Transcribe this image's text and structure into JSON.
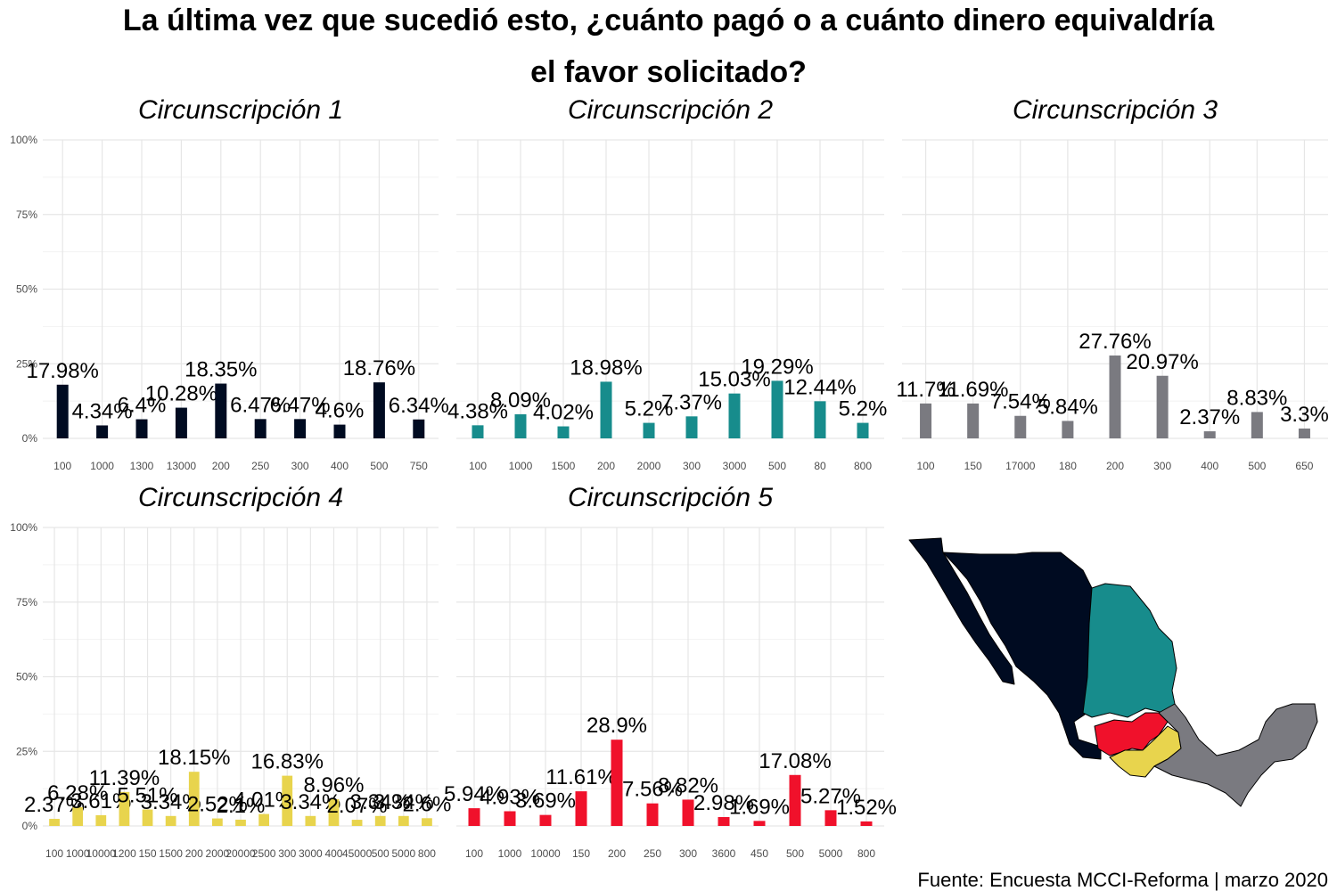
{
  "title_line1": "La última vez que sucedió esto, ¿cuánto pagó o a cuánto dinero equivaldría",
  "title_line2": "el favor solicitado?",
  "caption": "Fuente: Encuesta MCCI-Reforma | marzo 2020",
  "chart_data": {
    "type": "bar",
    "y_tick_labels": [
      "0%",
      "25%",
      "50%",
      "75%",
      "100%"
    ],
    "ylim": [
      0,
      100
    ],
    "grid": true,
    "panels": [
      {
        "title": "Circunscripción 1",
        "color": "#000b21",
        "categories": [
          "100",
          "1000",
          "1300",
          "13000",
          "200",
          "250",
          "300",
          "400",
          "500",
          "750"
        ],
        "values": [
          17.98,
          4.34,
          6.4,
          10.28,
          18.35,
          6.47,
          6.47,
          4.6,
          18.76,
          6.34
        ],
        "labels": [
          "17.98%",
          "4.34%",
          "6.4%",
          "10.28%",
          "18.35%",
          "6.47%",
          "6.47%",
          "4.6%",
          "18.76%",
          "6.34%"
        ]
      },
      {
        "title": "Circunscripción 2",
        "color": "#178c8c",
        "categories": [
          "100",
          "1000",
          "1500",
          "200",
          "2000",
          "300",
          "3000",
          "500",
          "80",
          "800"
        ],
        "values": [
          4.38,
          8.09,
          4.02,
          18.98,
          5.2,
          7.37,
          15.03,
          19.29,
          12.44,
          5.2
        ],
        "labels": [
          "4.38%",
          "8.09%",
          "4.02%",
          "18.98%",
          "5.2%",
          "7.37%",
          "15.03%",
          "19.29%",
          "12.44%",
          "5.2%"
        ]
      },
      {
        "title": "Circunscripción 3",
        "color": "#7a7a80",
        "categories": [
          "100",
          "150",
          "17000",
          "180",
          "200",
          "300",
          "400",
          "500",
          "650"
        ],
        "values": [
          11.7,
          11.69,
          7.54,
          5.84,
          27.76,
          20.97,
          2.37,
          8.83,
          3.3
        ],
        "labels": [
          "11.7%",
          "11.69%",
          "7.54%",
          "5.84%",
          "27.76%",
          "20.97%",
          "2.37%",
          "8.83%",
          "3.3%"
        ]
      },
      {
        "title": "Circunscripción 4",
        "color": "#e8d44d",
        "categories": [
          "100",
          "1000",
          "10000",
          "1200",
          "150",
          "1500",
          "200",
          "2000",
          "20000",
          "2500",
          "300",
          "3000",
          "400",
          "45000",
          "500",
          "5000",
          "800"
        ],
        "values": [
          2.37,
          6.28,
          3.61,
          11.39,
          5.51,
          3.34,
          18.15,
          2.52,
          2.1,
          4.01,
          16.83,
          3.34,
          8.96,
          2.07,
          3.34,
          3.34,
          2.6
        ],
        "labels": [
          "2.37%",
          "6.28%",
          "3.61%",
          "11.39%",
          "5.51%",
          "3.34%",
          "18.15%",
          "2.52%",
          "2.1%",
          "4.01%",
          "16.83%",
          "3.34%",
          "8.96%",
          "2.07%",
          "3.34%",
          "3.34%",
          "2.6%"
        ]
      },
      {
        "title": "Circunscripción 5",
        "color": "#f0112b",
        "categories": [
          "100",
          "1000",
          "10000",
          "150",
          "200",
          "250",
          "300",
          "3600",
          "450",
          "500",
          "5000",
          "800"
        ],
        "values": [
          5.94,
          4.93,
          3.69,
          11.61,
          28.9,
          7.56,
          8.82,
          2.98,
          1.69,
          17.08,
          5.27,
          1.52
        ],
        "labels": [
          "5.94%",
          "4.93%",
          "3.69%",
          "11.61%",
          "28.9%",
          "7.56%",
          "8.82%",
          "2.98%",
          "1.69%",
          "17.08%",
          "5.27%",
          "1.52%"
        ]
      }
    ]
  },
  "map": {
    "regions": [
      {
        "name": "Circunscripción 1",
        "color": "#000b21"
      },
      {
        "name": "Circunscripción 2",
        "color": "#178c8c"
      },
      {
        "name": "Circunscripción 3",
        "color": "#7a7a80"
      },
      {
        "name": "Circunscripción 4",
        "color": "#e8d44d"
      },
      {
        "name": "Circunscripción 5",
        "color": "#f0112b"
      }
    ]
  }
}
